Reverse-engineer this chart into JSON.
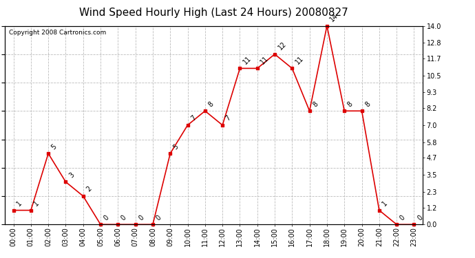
{
  "title": "Wind Speed Hourly High (Last 24 Hours) 20080827",
  "copyright": "Copyright 2008 Cartronics.com",
  "hours": [
    "00:00",
    "01:00",
    "02:00",
    "03:00",
    "04:00",
    "05:00",
    "06:00",
    "07:00",
    "08:00",
    "09:00",
    "10:00",
    "11:00",
    "12:00",
    "13:00",
    "14:00",
    "15:00",
    "16:00",
    "17:00",
    "18:00",
    "19:00",
    "20:00",
    "21:00",
    "22:00",
    "23:00"
  ],
  "values": [
    1,
    1,
    5,
    3,
    2,
    0,
    0,
    0,
    0,
    5,
    7,
    8,
    7,
    11,
    11,
    12,
    11,
    8,
    14,
    8,
    8,
    1,
    0,
    0
  ],
  "line_color": "#dd0000",
  "marker_color": "#dd0000",
  "bg_color": "#ffffff",
  "plot_bg_color": "#ffffff",
  "grid_color": "#bbbbbb",
  "ylim": [
    0,
    14.0
  ],
  "yticks_right": [
    0.0,
    1.2,
    2.3,
    3.5,
    4.7,
    5.8,
    7.0,
    8.2,
    9.3,
    10.5,
    11.7,
    12.8,
    14.0
  ],
  "title_fontsize": 11,
  "copyright_fontsize": 6.5,
  "label_fontsize": 7,
  "tick_fontsize": 7,
  "border_color": "#000000"
}
